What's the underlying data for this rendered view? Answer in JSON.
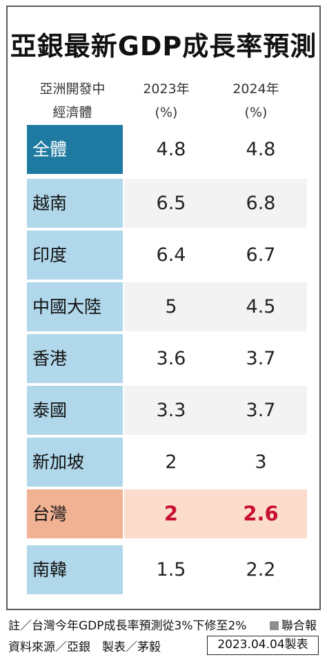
{
  "title": "亞銀最新GDP成長率預測",
  "header": {
    "label_line1": "亞洲開發中",
    "label_line2": "經濟體",
    "col1_line1": "2023年",
    "col1_line2": "(%)",
    "col2_line1": "2024年",
    "col2_line2": "(%)"
  },
  "rows": [
    {
      "name": "全體",
      "y2023": "4.8",
      "y2024": "4.8"
    },
    {
      "name": "越南",
      "y2023": "6.5",
      "y2024": "6.8"
    },
    {
      "name": "印度",
      "y2023": "6.4",
      "y2024": "6.7"
    },
    {
      "name": "中國大陸",
      "y2023": "5",
      "y2024": "4.5"
    },
    {
      "name": "香港",
      "y2023": "3.6",
      "y2024": "3.7"
    },
    {
      "name": "泰國",
      "y2023": "3.3",
      "y2024": "3.7"
    },
    {
      "name": "新加坡",
      "y2023": "2",
      "y2024": "3"
    },
    {
      "name": "台灣",
      "y2023": "2",
      "y2024": "2.6"
    },
    {
      "name": "南韓",
      "y2023": "1.5",
      "y2024": "2.2"
    }
  ],
  "footer": {
    "note": "註／台灣今年GDP成長率預測從3%下修至2%",
    "source": "資料來源／亞銀　製表／茅毅",
    "logo": "聯合報",
    "date": "2023.04.04製表"
  },
  "colors": {
    "label_bg": "#b0d7ea",
    "highlight_bg": "#1f7aa1",
    "taiwan_label_bg": "#f1b294",
    "taiwan_row_bg": "#fbdccd",
    "stripe_bg": "#f3f3f3",
    "taiwan_value": "#c8102e"
  }
}
